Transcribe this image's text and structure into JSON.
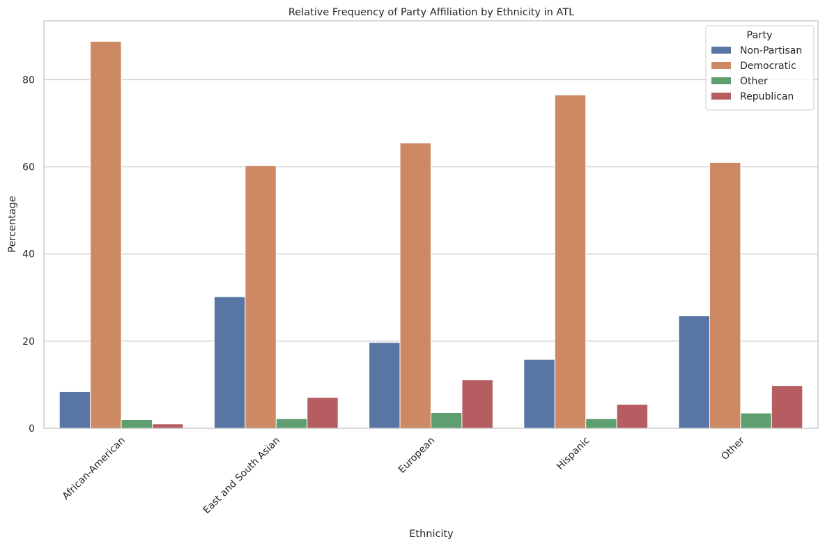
{
  "chart_data": {
    "type": "bar",
    "title": "Relative Frequency of Party Affiliation by Ethnicity in ATL",
    "xlabel": "Ethnicity",
    "ylabel": "Percentage",
    "ylim": [
      0,
      93.5
    ],
    "yticks": [
      0,
      20,
      40,
      60,
      80
    ],
    "grid": "horizontal",
    "legend": {
      "title": "Party",
      "placement": "top-right"
    },
    "categories": [
      "African-American",
      "East and South Asian",
      "European",
      "Hispanic",
      "Other"
    ],
    "series": [
      {
        "name": "Non-Partisan",
        "color": "#5875a4",
        "values": [
          8.4,
          30.2,
          19.7,
          15.8,
          25.8
        ]
      },
      {
        "name": "Democratic",
        "color": "#cc8963",
        "values": [
          88.8,
          60.3,
          65.5,
          76.5,
          61.0
        ]
      },
      {
        "name": "Other",
        "color": "#5f9e6e",
        "values": [
          2.0,
          2.2,
          3.6,
          2.2,
          3.5
        ]
      },
      {
        "name": "Republican",
        "color": "#b55d60",
        "values": [
          1.0,
          7.1,
          11.1,
          5.5,
          9.8
        ]
      }
    ]
  }
}
